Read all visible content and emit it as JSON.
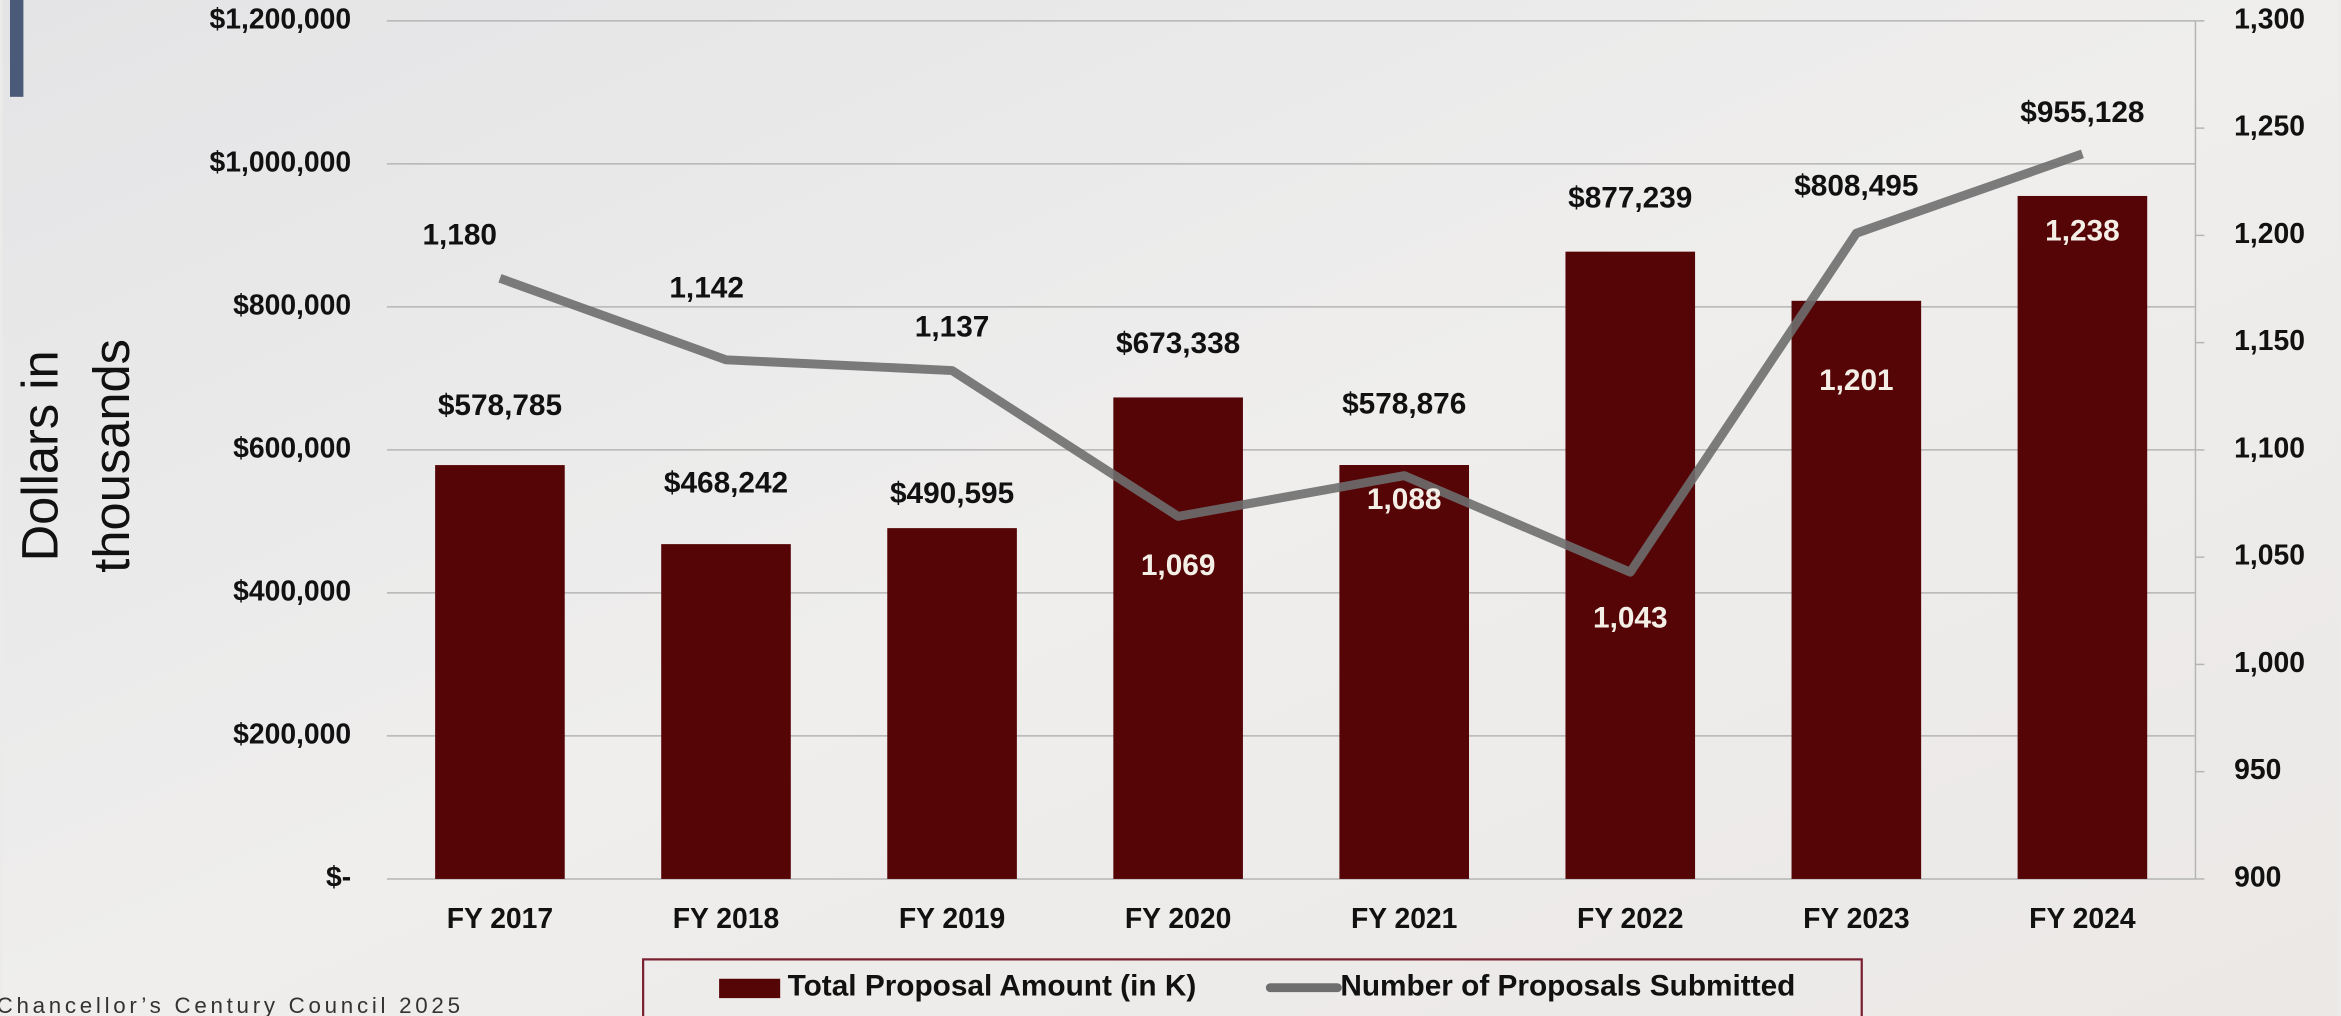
{
  "chart_data": {
    "type": "bar-line",
    "y_axis_label": "Dollars in thousands",
    "categories": [
      "FY 2017",
      "FY 2018",
      "FY 2019",
      "FY 2020",
      "FY 2021",
      "FY 2022",
      "FY 2023",
      "FY 2024"
    ],
    "series": [
      {
        "name": "Total Proposal Amount (in K)",
        "type": "bar",
        "color": "#560507",
        "values": [
          578785,
          468242,
          490595,
          673338,
          578876,
          877239,
          808495,
          955128
        ],
        "value_labels": [
          "$578,785",
          "$468,242",
          "$490,595",
          "$673,338",
          "$578,876",
          "$877,239",
          "$808,495",
          "$955,128"
        ]
      },
      {
        "name": "Number of Proposals Submitted",
        "type": "line",
        "axis": "y2",
        "color": "#6e6e6e",
        "values": [
          1180,
          1142,
          1137,
          1069,
          1088,
          1043,
          1201,
          1238
        ],
        "value_labels": [
          "1,180",
          "1,142",
          "1,137",
          "1,069",
          "1,088",
          "1,043",
          "1,201",
          "1,238"
        ]
      }
    ],
    "ylim": [
      0,
      1200000
    ],
    "yticks": [
      {
        "value": 0,
        "label": "$-"
      },
      {
        "value": 200000,
        "label": "$200,000"
      },
      {
        "value": 400000,
        "label": "$400,000"
      },
      {
        "value": 600000,
        "label": "$600,000"
      },
      {
        "value": 800000,
        "label": "$800,000"
      },
      {
        "value": 1000000,
        "label": "$1,000,000"
      },
      {
        "value": 1200000,
        "label": "$1,200,000"
      }
    ],
    "y2lim": [
      900,
      1300
    ],
    "y2ticks": [
      900,
      950,
      {
        "value": 1000,
        "label": "1,000"
      },
      {
        "value": 1050,
        "label": "1,050"
      },
      {
        "value": 1100,
        "label": "1,100"
      },
      {
        "value": 1150,
        "label": "1,150"
      },
      {
        "value": 1200,
        "label": "1,200"
      },
      {
        "value": 1250,
        "label": "1,250"
      },
      {
        "value": 1300,
        "label": "1,300"
      }
    ],
    "grid": true
  },
  "footer": "Chancellor’s Century Council 2025"
}
